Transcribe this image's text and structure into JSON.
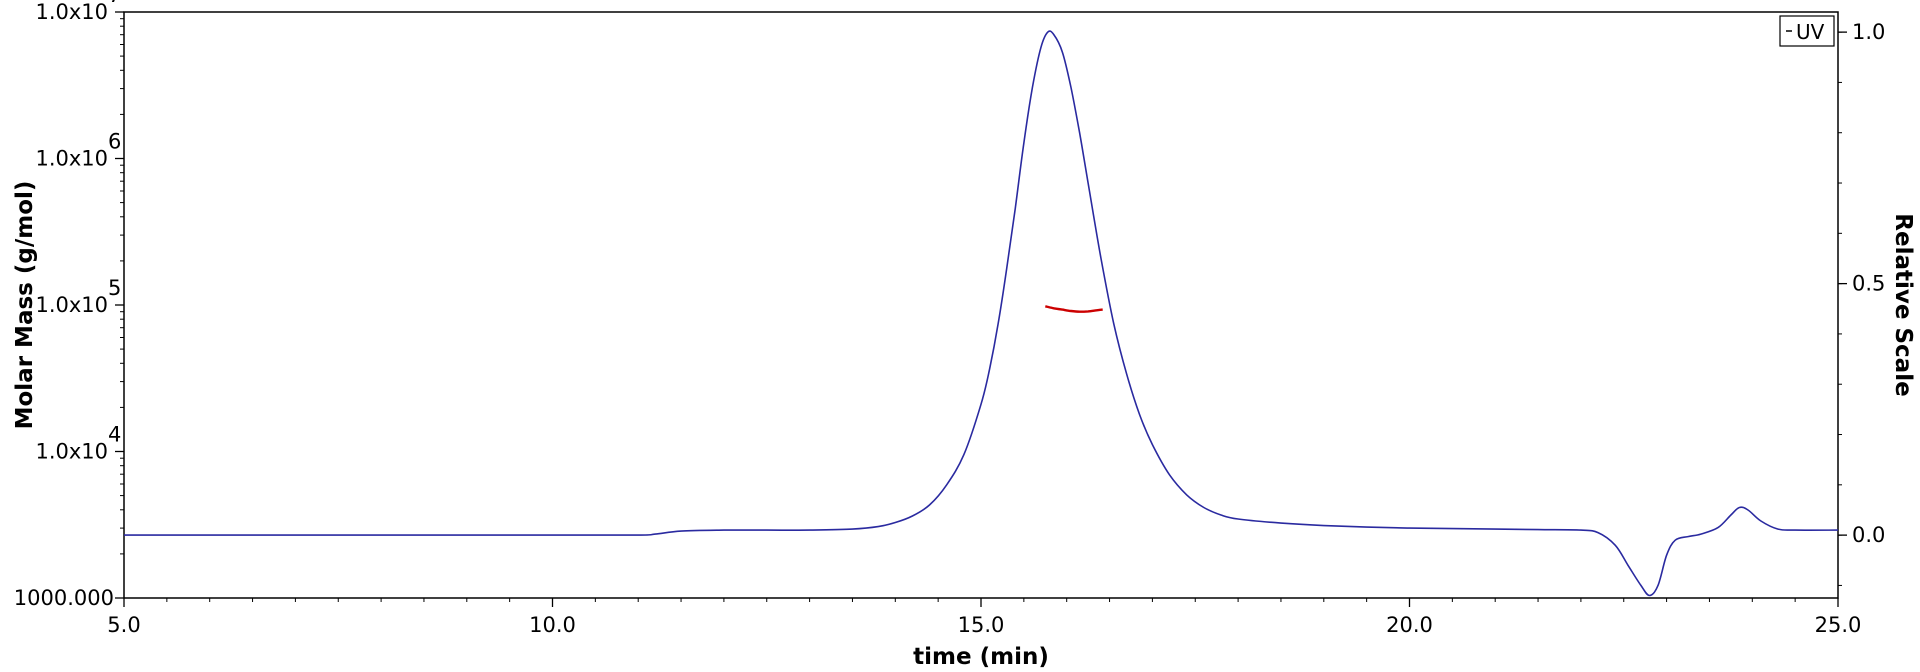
{
  "chart_data": {
    "type": "line",
    "title": "",
    "xlabel": "time (min)",
    "ylabel_left": "Molar Mass (g/mol)",
    "ylabel_right": "Relative Scale",
    "xlim": [
      5.0,
      25.0
    ],
    "x_ticks": [
      5.0,
      10.0,
      15.0,
      20.0,
      25.0
    ],
    "x_tick_labels": [
      "5.0",
      "10.0",
      "15.0",
      "20.0",
      "25.0"
    ],
    "y_left_scale": "log",
    "y_left_lim": [
      1000,
      10000000
    ],
    "y_left_ticks": [
      {
        "value": 1000,
        "base": "1000.000",
        "exp": ""
      },
      {
        "value": 10000,
        "base": "1.0x10",
        "exp": "4"
      },
      {
        "value": 100000,
        "base": "1.0x10",
        "exp": "5"
      },
      {
        "value": 1000000,
        "base": "1.0x10",
        "exp": "6"
      },
      {
        "value": 10000000,
        "base": "1.0x10",
        "exp": "7"
      }
    ],
    "y_right_lim": [
      -0.125,
      1.04
    ],
    "y_right_ticks": [
      0.0,
      0.5,
      1.0
    ],
    "y_right_tick_labels": [
      "0.0",
      "0.5",
      "1.0"
    ],
    "legend": {
      "position": "top-right",
      "entries": [
        {
          "label": "UV",
          "color": "#0000a0"
        }
      ]
    },
    "series": [
      {
        "name": "UV",
        "axis": "right",
        "color": "#2a2aa0",
        "x": [
          5.0,
          8.0,
          10.0,
          11.0,
          11.2,
          11.5,
          12.0,
          12.5,
          13.0,
          13.5,
          13.8,
          14.0,
          14.2,
          14.4,
          14.6,
          14.8,
          15.0,
          15.1,
          15.2,
          15.3,
          15.4,
          15.5,
          15.6,
          15.7,
          15.78,
          15.85,
          15.95,
          16.05,
          16.15,
          16.25,
          16.4,
          16.55,
          16.7,
          16.85,
          17.0,
          17.2,
          17.4,
          17.6,
          17.8,
          18.0,
          18.5,
          19.0,
          19.5,
          20.0,
          20.5,
          21.0,
          21.5,
          22.0,
          22.2,
          22.4,
          22.55,
          22.7,
          22.8,
          22.9,
          23.0,
          23.1,
          23.25,
          23.4,
          23.6,
          23.75,
          23.85,
          23.95,
          24.1,
          24.3,
          24.5,
          25.0
        ],
        "y": [
          0.0,
          0.0,
          0.0,
          0.0,
          0.002,
          0.008,
          0.01,
          0.01,
          0.01,
          0.012,
          0.017,
          0.025,
          0.038,
          0.06,
          0.1,
          0.16,
          0.26,
          0.33,
          0.42,
          0.53,
          0.65,
          0.78,
          0.89,
          0.97,
          1.0,
          0.995,
          0.96,
          0.89,
          0.8,
          0.7,
          0.55,
          0.42,
          0.32,
          0.24,
          0.18,
          0.12,
          0.08,
          0.055,
          0.04,
          0.032,
          0.024,
          0.019,
          0.016,
          0.014,
          0.013,
          0.012,
          0.011,
          0.01,
          0.005,
          -0.02,
          -0.06,
          -0.1,
          -0.12,
          -0.1,
          -0.04,
          -0.01,
          -0.003,
          0.002,
          0.015,
          0.04,
          0.055,
          0.05,
          0.028,
          0.012,
          0.01,
          0.01
        ]
      },
      {
        "name": "",
        "axis": "left",
        "color": "#cc0000",
        "x": [
          15.75,
          15.85,
          15.95,
          16.05,
          16.15,
          16.25,
          16.35,
          16.42
        ],
        "y": [
          98000,
          95000,
          93000,
          91000,
          90000,
          90500,
          92000,
          93000
        ]
      }
    ]
  }
}
